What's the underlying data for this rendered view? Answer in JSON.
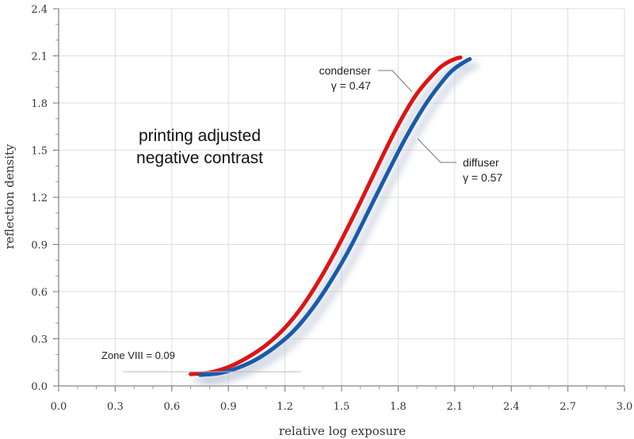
{
  "chart_data": {
    "type": "line",
    "xlabel": "relative log exposure",
    "ylabel": "reflection density",
    "xlim": [
      0,
      3.0
    ],
    "ylim": [
      0,
      2.4
    ],
    "x_ticks": [
      "0.0",
      "0.3",
      "0.6",
      "0.9",
      "1.2",
      "1.5",
      "1.8",
      "2.1",
      "2.4",
      "2.7",
      "3.0"
    ],
    "y_ticks": [
      "0.0",
      "0.3",
      "0.6",
      "0.9",
      "1.2",
      "1.5",
      "1.8",
      "2.1",
      "2.4"
    ],
    "grid": true,
    "series": [
      {
        "name": "condenser",
        "color": "#dd1414",
        "x": [
          0.7,
          0.8,
          0.9,
          1.0,
          1.1,
          1.2,
          1.3,
          1.4,
          1.5,
          1.6,
          1.7,
          1.8,
          1.9,
          2.0,
          2.05,
          2.1,
          2.13
        ],
        "y": [
          0.075,
          0.085,
          0.12,
          0.18,
          0.26,
          0.37,
          0.52,
          0.71,
          0.93,
          1.17,
          1.42,
          1.66,
          1.86,
          2.0,
          2.05,
          2.08,
          2.09
        ]
      },
      {
        "name": "diffuser",
        "color": "#1a5aaa",
        "x": [
          0.75,
          0.85,
          0.95,
          1.05,
          1.15,
          1.25,
          1.35,
          1.45,
          1.55,
          1.65,
          1.75,
          1.85,
          1.95,
          2.05,
          2.1,
          2.15,
          2.18
        ],
        "y": [
          0.07,
          0.08,
          0.115,
          0.17,
          0.25,
          0.355,
          0.5,
          0.68,
          0.89,
          1.13,
          1.37,
          1.6,
          1.8,
          1.96,
          2.02,
          2.06,
          2.08
        ]
      }
    ],
    "annotations": {
      "condenser_name": "condenser",
      "condenser_gamma": "γ = 0.47",
      "diffuser_name": "diffuser",
      "diffuser_gamma": "γ = 0.57",
      "main_line1": "printing adjusted",
      "main_line2": "negative contrast",
      "zone": "Zone VIII = 0.09",
      "zone_value": 0.09
    }
  }
}
